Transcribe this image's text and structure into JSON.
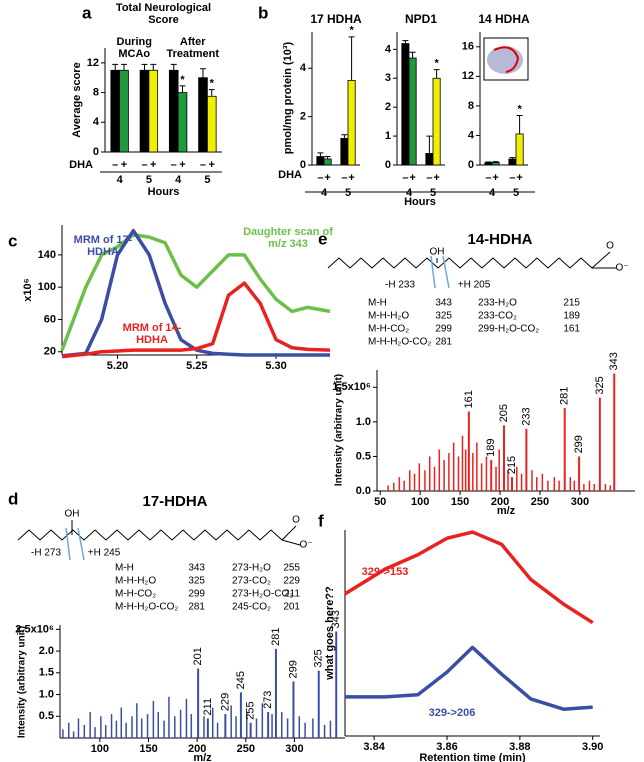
{
  "chart_data": [
    {
      "panel_label": "a",
      "type": "bar",
      "title": "Total Neurological Score",
      "group_labels": [
        "During MCAo",
        "After Treatment"
      ],
      "y_label": "Average score",
      "x_label": "Hours",
      "dha_label": "DHA",
      "categories": [
        "4",
        "5",
        "4",
        "5"
      ],
      "series": [
        {
          "name": "–",
          "color": "#000000",
          "values": [
            11,
            11,
            11,
            10
          ],
          "errors": [
            0.8,
            0.8,
            0.8,
            1.2
          ]
        },
        {
          "name": "+",
          "colors": [
            "#1f9a3c",
            "#f2ee00",
            "#1f9a3c",
            "#f2ee00"
          ],
          "values": [
            11,
            11,
            8,
            7.5
          ],
          "errors": [
            0.8,
            0.8,
            0.9,
            0.9
          ],
          "significance": [
            null,
            null,
            "*",
            "*"
          ]
        }
      ],
      "ylim": [
        0,
        14
      ],
      "yticks": [
        0,
        4,
        8,
        12
      ]
    },
    {
      "panel_label": "b",
      "type": "bar",
      "title": "17 HDHA",
      "y_label": "pmol/mg protein (10³)",
      "x_label": "Hours",
      "dha_label": "DHA",
      "categories": [
        "4",
        "5"
      ],
      "series": [
        {
          "name": "–",
          "color": "#000000",
          "values": [
            0.35,
            1.1
          ],
          "errors": [
            0.15,
            0.15
          ]
        },
        {
          "name": "+",
          "colors": [
            "#1f9a3c",
            "#f2ee00"
          ],
          "values": [
            0.25,
            3.5
          ],
          "errors": [
            0.1,
            1.8
          ],
          "significance": [
            null,
            "*"
          ]
        }
      ],
      "ylim": [
        0,
        5.5
      ],
      "yticks": [
        0,
        2,
        4
      ]
    },
    {
      "type": "bar",
      "title": "NPD1",
      "categories": [
        "4",
        "5"
      ],
      "series": [
        {
          "name": "–",
          "color": "#000000",
          "values": [
            4.2,
            0.4
          ],
          "errors": [
            0.1,
            0.6
          ]
        },
        {
          "name": "+",
          "colors": [
            "#1f9a3c",
            "#f2ee00"
          ],
          "values": [
            3.7,
            3.0
          ],
          "errors": [
            0.2,
            0.3
          ],
          "significance": [
            null,
            "*"
          ]
        }
      ],
      "ylim": [
        0,
        4.6
      ],
      "yticks": [
        0,
        1,
        2,
        3,
        4
      ]
    },
    {
      "type": "bar",
      "title": "14 HDHA",
      "categories": [
        "4",
        "5"
      ],
      "series": [
        {
          "name": "–",
          "color": "#000000",
          "values": [
            0.3,
            0.8
          ],
          "errors": [
            0.1,
            0.2
          ]
        },
        {
          "name": "+",
          "colors": [
            "#1f9a3c",
            "#f2ee00"
          ],
          "values": [
            0.35,
            4.2
          ],
          "errors": [
            0.1,
            2.5
          ],
          "significance": [
            null,
            "*"
          ]
        }
      ],
      "ylim": [
        0,
        18
      ],
      "yticks": [
        0,
        4,
        8,
        12,
        16
      ]
    },
    {
      "panel_label": "c",
      "type": "line",
      "y_label": "x10⁶",
      "x": [
        5.165,
        5.18,
        5.19,
        5.2,
        5.21,
        5.22,
        5.23,
        5.24,
        5.25,
        5.26,
        5.27,
        5.28,
        5.29,
        5.3,
        5.31,
        5.32,
        5.334
      ],
      "series": [
        {
          "name": "Daughter scan of m/z 343",
          "color": "#6cc04a",
          "values": [
            22,
            100,
            140,
            150,
            165,
            162,
            155,
            115,
            100,
            120,
            140,
            140,
            110,
            85,
            70,
            75,
            70
          ]
        },
        {
          "name": "MRM of 17-HDHA",
          "color": "#3a4fa3",
          "values": [
            15,
            18,
            60,
            140,
            170,
            140,
            80,
            35,
            22,
            18,
            17,
            16,
            16,
            16,
            16,
            16,
            16
          ]
        },
        {
          "name": "MRM of 14-HDHA",
          "color": "#e8231f",
          "values": [
            14,
            17,
            20,
            21,
            22,
            22,
            22,
            22,
            24,
            30,
            90,
            105,
            80,
            35,
            25,
            23,
            22
          ]
        }
      ],
      "xlim": [
        5.165,
        5.334
      ],
      "xticks": [
        {
          "value": 5.2,
          "label": "5.20"
        },
        {
          "value": 5.25,
          "label": "5.25"
        },
        {
          "value": 5.3,
          "label": "5.30"
        }
      ],
      "ylim": [
        16,
        177
      ],
      "yticks": [
        20,
        60,
        100,
        140
      ]
    },
    {
      "panel_label": "d",
      "type": "spectrum",
      "title": "17-HDHA",
      "molecule_labels": [
        "OH",
        "-H 273",
        "+H 245",
        "O",
        "O⁻"
      ],
      "fragments": {
        "left": [
          [
            "M-H",
            343
          ],
          [
            "M-H-H₂O",
            325
          ],
          [
            "M-H-CO₂",
            299
          ],
          [
            "M-H-H₂O-CO₂",
            281
          ]
        ],
        "right": [
          [
            "273-H₂O",
            255
          ],
          [
            "273-CO₂",
            229
          ],
          [
            "273-H₂O-CO₂",
            211
          ],
          [
            "245-CO₂",
            201
          ]
        ]
      },
      "y_label": "Intensity (arbitrary unit)",
      "x_label": "m/z",
      "color": "#3a4fa3",
      "x": [
        62,
        68,
        73,
        78,
        84,
        90,
        95,
        101,
        106,
        112,
        117,
        122,
        127,
        133,
        138,
        143,
        149,
        155,
        160,
        166,
        171,
        177,
        183,
        189,
        194,
        207,
        216,
        221,
        235,
        240,
        251,
        261,
        267,
        277,
        287,
        293,
        305,
        311,
        319,
        331,
        337
      ],
      "values": [
        0.2,
        0.35,
        0.15,
        0.45,
        0.3,
        0.6,
        0.25,
        0.5,
        0.3,
        0.55,
        0.4,
        0.7,
        0.35,
        0.5,
        0.8,
        0.45,
        0.55,
        0.85,
        0.6,
        0.4,
        0.95,
        0.5,
        0.65,
        0.9,
        0.55,
        0.5,
        0.7,
        0.35,
        0.75,
        0.5,
        0.6,
        0.45,
        0.8,
        0.55,
        0.6,
        0.45,
        0.5,
        0.35,
        0.45,
        0.3,
        0.4
      ],
      "labeled_peaks": {
        "x": [
          201,
          211,
          229,
          245,
          255,
          273,
          281,
          299,
          325,
          343
        ],
        "values": [
          1.6,
          0.45,
          0.55,
          1.05,
          0.35,
          0.6,
          2.05,
          1.3,
          1.55,
          2.45
        ]
      },
      "xlim": [
        59,
        352
      ],
      "xticks": [
        100,
        150,
        200,
        250,
        300
      ],
      "ylim": [
        0,
        2.6
      ],
      "yticks": [
        0.5,
        {
          "value": 1,
          "label": "1.0"
        },
        1.5,
        {
          "value": 2,
          "label": "2.0"
        },
        {
          "value": 2.5,
          "label": "2.5x10⁶"
        }
      ]
    },
    {
      "panel_label": "e",
      "type": "spectrum",
      "title": "14-HDHA",
      "molecule_labels": [
        "OH",
        "-H 233",
        "+H 205",
        "O",
        "O⁻"
      ],
      "fragments": {
        "left": [
          [
            "M-H",
            343
          ],
          [
            "M-H-H₂O",
            325
          ],
          [
            "M-H-CO₂",
            299
          ],
          [
            "M-H-H₂O-CO₂",
            281
          ]
        ],
        "right": [
          [
            "233-H₂O",
            215
          ],
          [
            "233-CO₂",
            189
          ],
          [
            "299-H₂O-CO₂",
            161
          ]
        ]
      },
      "y_label": "Intensity (arbitrary unit)",
      "x_label": "m/z",
      "color": "#e8231f",
      "x": [
        60,
        67,
        74,
        80,
        87,
        93,
        99,
        106,
        112,
        118,
        124,
        130,
        136,
        142,
        148,
        153,
        157,
        166,
        171,
        177,
        183,
        195,
        199,
        210,
        221,
        227,
        240,
        246,
        253,
        260,
        268,
        274,
        288,
        293,
        305,
        312,
        318,
        332,
        338
      ],
      "values": [
        0.08,
        0.12,
        0.2,
        0.15,
        0.3,
        0.25,
        0.4,
        0.3,
        0.5,
        0.35,
        0.6,
        0.45,
        0.55,
        0.7,
        0.5,
        0.8,
        0.6,
        0.55,
        0.7,
        0.4,
        0.5,
        0.35,
        0.6,
        0.3,
        0.35,
        0.25,
        0.3,
        0.2,
        0.25,
        0.15,
        0.2,
        0.15,
        0.2,
        0.15,
        0.1,
        0.15,
        0.1,
        0.1,
        0.08
      ],
      "labeled_peaks": {
        "x": [
          161,
          189,
          205,
          215,
          233,
          281,
          299,
          325,
          343
        ],
        "values": [
          1.15,
          0.45,
          0.95,
          0.2,
          0.9,
          1.2,
          0.5,
          1.35,
          1.7
        ]
      },
      "xlim": [
        46,
        369
      ],
      "xticks": [
        50,
        100,
        150,
        200,
        250,
        300
      ],
      "ylim": [
        0,
        1.75
      ],
      "yticks": [
        {
          "value": 0,
          "label": "0.0"
        },
        0.5,
        {
          "value": 1,
          "label": "1.0"
        },
        {
          "value": 1.5,
          "label": "1.5x10⁶"
        }
      ]
    },
    {
      "panel_label": "f",
      "type": "line",
      "y_label": "what goes here??",
      "x_label": "Retention time (min)",
      "x": [
        3.832,
        3.843,
        3.852,
        3.86,
        3.867,
        3.875,
        3.883,
        3.892,
        3.9
      ],
      "series": [
        {
          "name": "329->153",
          "color": "#e8231f",
          "values": [
            69,
            81,
            88,
            96,
            99,
            93,
            76,
            64,
            55
          ]
        },
        {
          "name": "329->206",
          "color": "#3a4fa3",
          "values": [
            19,
            19,
            20,
            31,
            43,
            30,
            18,
            13,
            14
          ]
        }
      ],
      "xlim": [
        3.832,
        3.902
      ],
      "xticks": [
        3.84,
        3.86,
        3.88,
        {
          "value": 3.9,
          "label": "3.90"
        }
      ],
      "ylim": [
        0,
        100
      ]
    }
  ]
}
